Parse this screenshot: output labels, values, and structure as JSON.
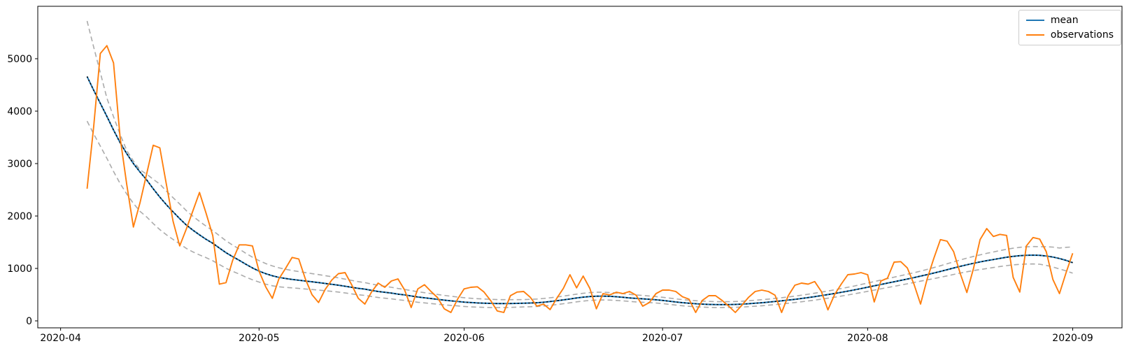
{
  "chart_data": {
    "type": "line",
    "title": "",
    "xlabel": "",
    "ylabel": "",
    "grid": false,
    "background": "#ffffff",
    "x_axis": {
      "unit": "date",
      "day_index_zero_date": "2020-04-01",
      "tick_day_indices": [
        0,
        30,
        61,
        91,
        122,
        153
      ],
      "tick_labels": [
        "2020-04",
        "2020-05",
        "2020-06",
        "2020-07",
        "2020-08",
        "2020-09"
      ],
      "xlim_days": [
        -3.45,
        160.45
      ]
    },
    "y_axis": {
      "tick_values": [
        0,
        1000,
        2000,
        3000,
        4000,
        5000
      ],
      "tick_labels": [
        "0",
        "1000",
        "2000",
        "3000",
        "4000",
        "5000"
      ],
      "ylim": [
        -133,
        6000
      ]
    },
    "legend": {
      "position": "upper right",
      "entries": [
        "mean",
        "observations"
      ]
    },
    "start_day_index": 4,
    "series": [
      {
        "name": "mean",
        "color": "#1f77b4",
        "overlay_color": "#000000",
        "style": "solid line with black dotted overlay",
        "values": [
          4660,
          4400,
          4150,
          3900,
          3640,
          3400,
          3190,
          3000,
          2840,
          2690,
          2520,
          2360,
          2215,
          2080,
          1950,
          1830,
          1730,
          1640,
          1555,
          1480,
          1390,
          1300,
          1225,
          1155,
          1080,
          1010,
          950,
          900,
          860,
          830,
          808,
          790,
          775,
          760,
          745,
          730,
          713,
          697,
          680,
          660,
          640,
          620,
          605,
          582,
          560,
          545,
          530,
          510,
          495,
          475,
          455,
          440,
          425,
          410,
          395,
          382,
          370,
          358,
          349,
          342,
          337,
          333,
          330,
          330,
          331,
          333,
          336,
          340,
          346,
          355,
          368,
          383,
          400,
          418,
          436,
          452,
          464,
          471,
          472,
          468,
          460,
          450,
          438,
          428,
          420,
          412,
          402,
          390,
          375,
          360,
          347,
          336,
          327,
          319,
          314,
          311,
          310,
          311,
          314,
          319,
          327,
          336,
          346,
          357,
          369,
          382,
          396,
          411,
          427,
          444,
          462,
          481,
          501,
          522,
          544,
          567,
          591,
          616,
          642,
          668,
          694,
          720,
          746,
          772,
          798,
          825,
          853,
          882,
          912,
          943,
          975,
          1008,
          1040,
          1070,
          1098,
          1124,
          1148,
          1170,
          1192,
          1213,
          1230,
          1243,
          1251,
          1254,
          1250,
          1238,
          1218,
          1190,
          1153,
          1110
        ]
      },
      {
        "name": "observations",
        "color": "#ff7f0e",
        "style": "solid",
        "values": [
          2520,
          3700,
          5100,
          5250,
          4920,
          3500,
          2600,
          1790,
          2250,
          2800,
          3350,
          3300,
          2600,
          1900,
          1430,
          1750,
          2100,
          2450,
          2050,
          1630,
          700,
          730,
          1150,
          1450,
          1450,
          1430,
          950,
          650,
          430,
          800,
          1000,
          1210,
          1180,
          800,
          500,
          350,
          600,
          780,
          900,
          920,
          690,
          430,
          320,
          550,
          720,
          640,
          760,
          800,
          590,
          255,
          610,
          690,
          560,
          440,
          230,
          160,
          410,
          610,
          640,
          650,
          550,
          390,
          190,
          160,
          480,
          550,
          560,
          450,
          280,
          320,
          215,
          430,
          620,
          880,
          630,
          855,
          620,
          230,
          520,
          495,
          545,
          520,
          560,
          490,
          280,
          350,
          520,
          587,
          587,
          560,
          460,
          413,
          160,
          390,
          480,
          480,
          390,
          280,
          160,
          300,
          450,
          560,
          587,
          560,
          490,
          160,
          480,
          680,
          720,
          700,
          750,
          560,
          210,
          500,
          700,
          880,
          893,
          920,
          880,
          360,
          760,
          813,
          1120,
          1130,
          1010,
          700,
          320,
          800,
          1190,
          1550,
          1520,
          1320,
          900,
          540,
          1000,
          1550,
          1760,
          1610,
          1650,
          1630,
          830,
          550,
          1430,
          1590,
          1560,
          1320,
          790,
          520,
          920,
          1290
        ]
      }
    ],
    "uncertainty_band": {
      "color": "#ababab",
      "style": "dashed",
      "description": "upper/lower dashed bounds around mean; offsets interpolated from anchors [day_index, upper_offset, lower_offset]",
      "offset_anchors": [
        [
          4,
          1060,
          850
        ],
        [
          7,
          350,
          800
        ],
        [
          10,
          60,
          770
        ],
        [
          12,
          40,
          750
        ],
        [
          15,
          250,
          620
        ],
        [
          18,
          280,
          480
        ],
        [
          22,
          250,
          350
        ],
        [
          26,
          220,
          280
        ],
        [
          30,
          200,
          210
        ],
        [
          35,
          170,
          160
        ],
        [
          42,
          140,
          130
        ],
        [
          50,
          110,
          110
        ],
        [
          60,
          85,
          85
        ],
        [
          70,
          70,
          70
        ],
        [
          81,
          75,
          75
        ],
        [
          91,
          60,
          60
        ],
        [
          101,
          55,
          55
        ],
        [
          110,
          60,
          60
        ],
        [
          120,
          75,
          75
        ],
        [
          130,
          95,
          95
        ],
        [
          140,
          140,
          150
        ],
        [
          145,
          160,
          165
        ],
        [
          148,
          165,
          170
        ],
        [
          151,
          200,
          200
        ],
        [
          153,
          300,
          200
        ]
      ]
    }
  }
}
